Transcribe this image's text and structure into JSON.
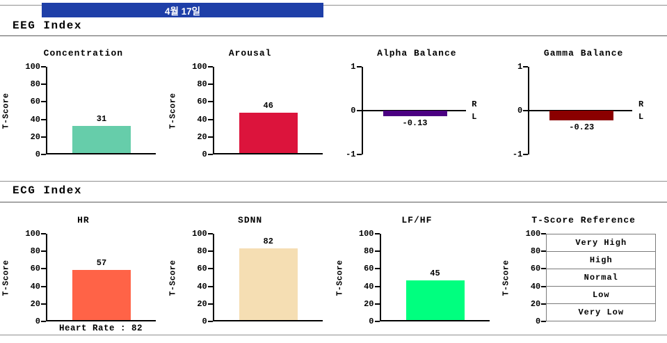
{
  "header": {
    "date_label": "4월 17일",
    "banner_color": "#1e3fa8"
  },
  "sections": {
    "eeg": {
      "title": "EEG Index"
    },
    "ecg": {
      "title": "ECG Index"
    }
  },
  "chart_data": [
    {
      "id": "concentration",
      "section": "eeg",
      "type": "bar",
      "title": "Concentration",
      "ylabel": "T-Score",
      "ylim": [
        0,
        100
      ],
      "yticks": [
        0,
        20,
        40,
        60,
        80,
        100
      ],
      "value": 31,
      "value_label": "31",
      "bar_color": "#66CDAA"
    },
    {
      "id": "arousal",
      "section": "eeg",
      "type": "bar",
      "title": "Arousal",
      "ylabel": "T-Score",
      "ylim": [
        0,
        100
      ],
      "yticks": [
        0,
        20,
        40,
        60,
        80,
        100
      ],
      "value": 46,
      "value_label": "46",
      "bar_color": "#DC143C"
    },
    {
      "id": "alpha-balance",
      "section": "eeg",
      "type": "balance",
      "title": "Alpha Balance",
      "ylim": [
        -1,
        1
      ],
      "yticks": [
        -1,
        0,
        1
      ],
      "value": -0.13,
      "value_label": "-0.13",
      "bar_color": "#4B0082",
      "side_labels": [
        "R",
        "L"
      ]
    },
    {
      "id": "gamma-balance",
      "section": "eeg",
      "type": "balance",
      "title": "Gamma Balance",
      "ylim": [
        -1,
        1
      ],
      "yticks": [
        -1,
        0,
        1
      ],
      "value": -0.23,
      "value_label": "-0.23",
      "bar_color": "#8B0000",
      "side_labels": [
        "R",
        "L"
      ]
    },
    {
      "id": "hr",
      "section": "ecg",
      "type": "bar",
      "title": "HR",
      "ylabel": "T-Score",
      "ylim": [
        0,
        100
      ],
      "yticks": [
        0,
        20,
        40,
        60,
        80,
        100
      ],
      "value": 57,
      "value_label": "57",
      "bar_color": "#FF6347",
      "footnote": "Heart Rate : 82"
    },
    {
      "id": "sdnn",
      "section": "ecg",
      "type": "bar",
      "title": "SDNN",
      "ylabel": "T-Score",
      "ylim": [
        0,
        100
      ],
      "yticks": [
        0,
        20,
        40,
        60,
        80,
        100
      ],
      "value": 82,
      "value_label": "82",
      "bar_color": "#F5DEB3"
    },
    {
      "id": "lfhf",
      "section": "ecg",
      "type": "bar",
      "title": "LF/HF",
      "ylabel": "T-Score",
      "ylim": [
        0,
        100
      ],
      "yticks": [
        0,
        20,
        40,
        60,
        80,
        100
      ],
      "value": 45,
      "value_label": "45",
      "bar_color": "#00FF7F"
    },
    {
      "id": "tscore-reference",
      "section": "ecg",
      "type": "reference",
      "title": "T-Score Reference",
      "ylabel": "T-Score",
      "ylim": [
        0,
        100
      ],
      "yticks": [
        0,
        20,
        40,
        60,
        80,
        100
      ],
      "rows": [
        "Very High",
        "High",
        "Normal",
        "Low",
        "Very Low"
      ]
    }
  ]
}
